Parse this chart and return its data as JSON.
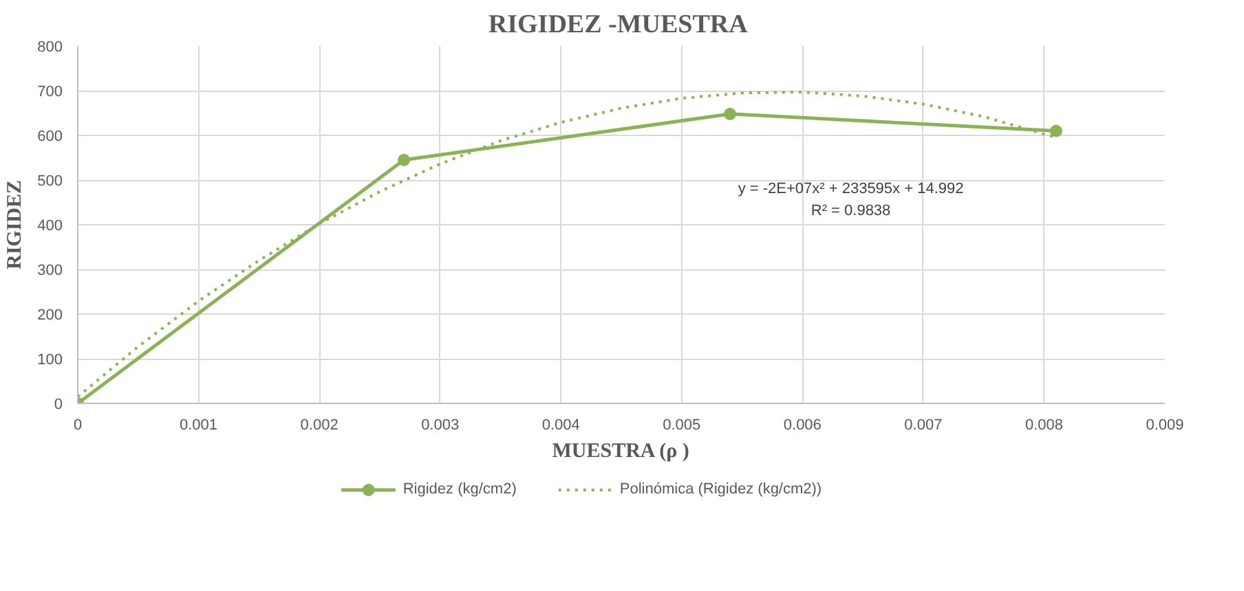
{
  "chart_data": {
    "type": "line",
    "title": "RIGIDEZ  -MUESTRA",
    "xlabel": "MUESTRA (ρ )",
    "ylabel": "RIGIDEZ",
    "xlim": [
      0,
      0.009
    ],
    "xticks": [
      0,
      0.001,
      0.002,
      0.003,
      0.004,
      0.005,
      0.006,
      0.007,
      0.008,
      0.009
    ],
    "ylim": [
      0,
      800
    ],
    "yticks": [
      0,
      100,
      200,
      300,
      400,
      500,
      600,
      700,
      800
    ],
    "grid": true,
    "legend": "bottom",
    "series": [
      {
        "name": "Rigidez (kg/cm2)",
        "color": "#8db255",
        "marker": "circle",
        "line_style": "solid",
        "x": [
          0,
          0.0027,
          0.0054,
          0.0081
        ],
        "values": [
          0,
          545,
          648,
          610
        ]
      },
      {
        "name": "Polinómica (Rigidez (kg/cm2))",
        "color": "#8db255",
        "marker": "none",
        "line_style": "dotted",
        "x": [
          0,
          0.0005,
          0.001,
          0.0015,
          0.002,
          0.0025,
          0.003,
          0.0035,
          0.004,
          0.0045,
          0.005,
          0.0055,
          0.006,
          0.0065,
          0.007,
          0.0075,
          0.0081
        ],
        "values": [
          15,
          127,
          229,
          320,
          402,
          474,
          536,
          588,
          629,
          661,
          683,
          695,
          697,
          688,
          670,
          642,
          595
        ]
      }
    ],
    "annotations": [
      "y = -2E+07x² + 233595x + 14.992\nR² = 0.9838"
    ]
  }
}
